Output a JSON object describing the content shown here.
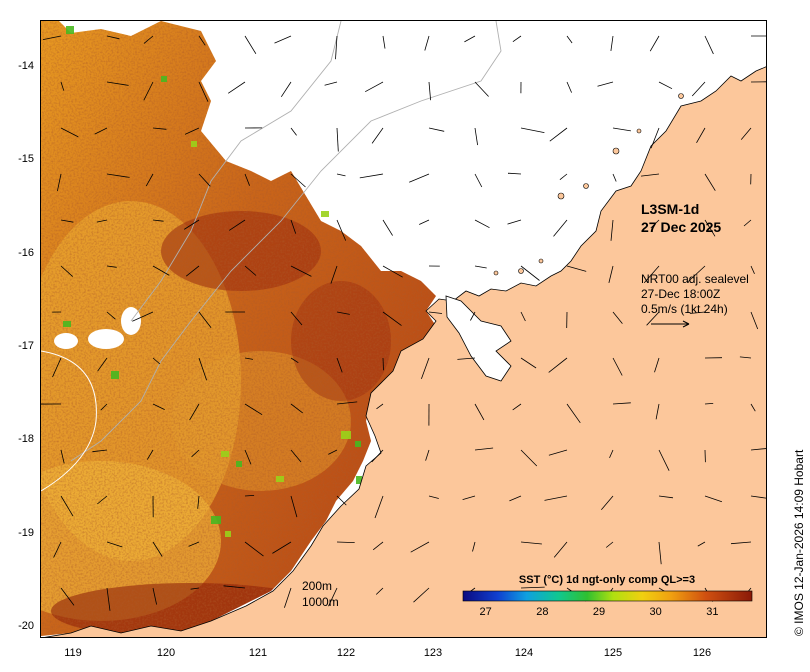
{
  "map": {
    "product": "L3SM-1d",
    "date": "27 Dec 2025",
    "vectors": {
      "line1": "NRT00 adj. sealevel",
      "line2": "27-Dec 18:00Z",
      "line3": "0.5m/s (1kt 24h)"
    },
    "isobaths": {
      "a": "200m",
      "b": "1000m"
    },
    "credit": "© IMOS 12-Jan-2026 14:09 Hobart",
    "y_axis": [
      "-14",
      "-15",
      "-16",
      "-17",
      "-18",
      "-19",
      "-20"
    ],
    "x_axis": [
      "119",
      "120",
      "121",
      "122",
      "123",
      "124",
      "125",
      "126"
    ],
    "colors": {
      "land": "#fcc79b",
      "sea_nodata": "#ffffff",
      "frame": "#000000"
    }
  },
  "colorbar": {
    "title": "SST (°C) 1d ngt-only comp QL>=3",
    "ticks": [
      "27",
      "28",
      "29",
      "30",
      "31"
    ],
    "range": [
      26.6,
      31.7
    ]
  }
}
